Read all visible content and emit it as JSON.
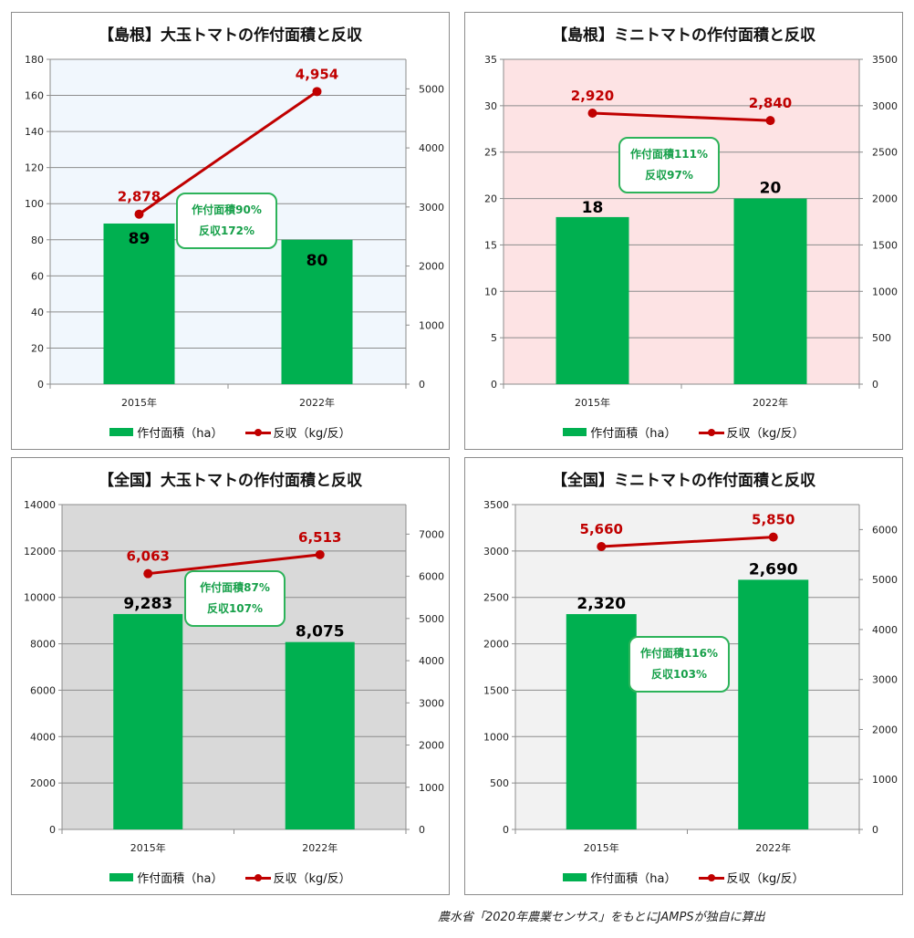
{
  "colors": {
    "bar": "#00b050",
    "line": "#c00000",
    "callout_border": "#2db35a",
    "callout_text": "#17a04a"
  },
  "legend": {
    "bar_label": "作付面積（ha）",
    "line_label": "反収（kg/反）"
  },
  "source_note": "農水省「2020年農業センサス」をもとにJAMPSが独自に算出",
  "charts": [
    {
      "id": "shimane-large",
      "title": "【島根】大玉トマトの作付面積と反収",
      "plot_bg": "#f1f7fd",
      "categories": [
        "2015年",
        "2022年"
      ],
      "bar_values": [
        89,
        80
      ],
      "bar_labels": [
        "89",
        "80"
      ],
      "line_values": [
        2878,
        4954
      ],
      "line_labels": [
        "2,878",
        "4,954"
      ],
      "left_axis": {
        "min": 0,
        "max": 180,
        "step": 20,
        "tick_labels": [
          "0",
          "20",
          "40",
          "60",
          "80",
          "100",
          "120",
          "140",
          "160",
          "180"
        ]
      },
      "right_axis": {
        "min": 0,
        "max": 5500,
        "ticks": [
          0,
          1000,
          2000,
          3000,
          4000,
          5000
        ],
        "tick_labels": [
          "0",
          "1000",
          "2000",
          "3000",
          "4000",
          "5000"
        ]
      },
      "callout": {
        "line1": "作付面積90%",
        "line2": "反収172%"
      }
    },
    {
      "id": "shimane-mini",
      "title": "【島根】ミニトマトの作付面積と反収",
      "plot_bg": "#fde3e4",
      "categories": [
        "2015年",
        "2022年"
      ],
      "bar_values": [
        18,
        20
      ],
      "bar_labels": [
        "18",
        "20"
      ],
      "line_values": [
        2920,
        2840
      ],
      "line_labels": [
        "2,920",
        "2,840"
      ],
      "left_axis": {
        "min": 0,
        "max": 35,
        "step": 5,
        "tick_labels": [
          "0",
          "5",
          "10",
          "15",
          "20",
          "25",
          "30",
          "35"
        ]
      },
      "right_axis": {
        "min": 0,
        "max": 3500,
        "ticks": [
          0,
          500,
          1000,
          1500,
          2000,
          2500,
          3000,
          3500
        ],
        "tick_labels": [
          "0",
          "500",
          "1000",
          "1500",
          "2000",
          "2500",
          "3000",
          "3500"
        ]
      },
      "callout": {
        "line1": "作付面積111%",
        "line2": "反収97%"
      }
    },
    {
      "id": "national-large",
      "title": "【全国】大玉トマトの作付面積と反収",
      "plot_bg": "#d9d9d9",
      "categories": [
        "2015年",
        "2022年"
      ],
      "bar_values": [
        9283,
        8075
      ],
      "bar_labels": [
        "9,283",
        "8,075"
      ],
      "line_values": [
        6063,
        6513
      ],
      "line_labels": [
        "6,063",
        "6,513"
      ],
      "left_axis": {
        "min": 0,
        "max": 14000,
        "step": 2000,
        "tick_labels": [
          "0",
          "2000",
          "4000",
          "6000",
          "8000",
          "10000",
          "12000",
          "14000"
        ]
      },
      "right_axis": {
        "min": 0,
        "max": 7700,
        "ticks": [
          0,
          1000,
          2000,
          3000,
          4000,
          5000,
          6000,
          7000
        ],
        "tick_labels": [
          "0",
          "1000",
          "2000",
          "3000",
          "4000",
          "5000",
          "6000",
          "7000"
        ]
      },
      "callout": {
        "line1": "作付面積87%",
        "line2": "反収107%"
      }
    },
    {
      "id": "national-mini",
      "title": "【全国】ミニトマトの作付面積と反収",
      "plot_bg": "#f2f2f2",
      "categories": [
        "2015年",
        "2022年"
      ],
      "bar_values": [
        2320,
        2690
      ],
      "bar_labels": [
        "2,320",
        "2,690"
      ],
      "line_values": [
        5660,
        5850
      ],
      "line_labels": [
        "5,660",
        "5,850"
      ],
      "left_axis": {
        "min": 0,
        "max": 3500,
        "step": 500,
        "tick_labels": [
          "0",
          "500",
          "1000",
          "1500",
          "2000",
          "2500",
          "3000",
          "3500"
        ]
      },
      "right_axis": {
        "min": 0,
        "max": 6500,
        "ticks": [
          0,
          1000,
          2000,
          3000,
          4000,
          5000,
          6000
        ],
        "tick_labels": [
          "0",
          "1000",
          "2000",
          "3000",
          "4000",
          "5000",
          "6000"
        ]
      },
      "callout": {
        "line1": "作付面積116%",
        "line2": "反収103%"
      }
    }
  ],
  "chart_data": [
    {
      "type": "bar",
      "title": "【島根】大玉トマトの作付面積と反収",
      "categories": [
        "2015年",
        "2022年"
      ],
      "series": [
        {
          "name": "作付面積（ha）",
          "type": "bar",
          "axis": "left",
          "values": [
            89,
            80
          ]
        },
        {
          "name": "反収（kg/反）",
          "type": "line",
          "axis": "right",
          "values": [
            2878,
            4954
          ]
        }
      ],
      "ylim": [
        0,
        180
      ],
      "y2lim": [
        0,
        5500
      ],
      "grid": true,
      "legend": "bottom"
    },
    {
      "type": "bar",
      "title": "【島根】ミニトマトの作付面積と反収",
      "categories": [
        "2015年",
        "2022年"
      ],
      "series": [
        {
          "name": "作付面積（ha）",
          "type": "bar",
          "axis": "left",
          "values": [
            18,
            20
          ]
        },
        {
          "name": "反収（kg/反）",
          "type": "line",
          "axis": "right",
          "values": [
            2920,
            2840
          ]
        }
      ],
      "ylim": [
        0,
        35
      ],
      "y2lim": [
        0,
        3500
      ],
      "grid": true,
      "legend": "bottom"
    },
    {
      "type": "bar",
      "title": "【全国】大玉トマトの作付面積と反収",
      "categories": [
        "2015年",
        "2022年"
      ],
      "series": [
        {
          "name": "作付面積（ha）",
          "type": "bar",
          "axis": "left",
          "values": [
            9283,
            8075
          ]
        },
        {
          "name": "反収（kg/反）",
          "type": "line",
          "axis": "right",
          "values": [
            6063,
            6513
          ]
        }
      ],
      "ylim": [
        0,
        14000
      ],
      "y2lim": [
        0,
        7700
      ],
      "grid": true,
      "legend": "bottom"
    },
    {
      "type": "bar",
      "title": "【全国】ミニトマトの作付面積と反収",
      "categories": [
        "2015年",
        "2022年"
      ],
      "series": [
        {
          "name": "作付面積（ha）",
          "type": "bar",
          "axis": "left",
          "values": [
            2320,
            2690
          ]
        },
        {
          "name": "反収（kg/反）",
          "type": "line",
          "axis": "right",
          "values": [
            5660,
            5850
          ]
        }
      ],
      "ylim": [
        0,
        3500
      ],
      "y2lim": [
        0,
        6500
      ],
      "grid": true,
      "legend": "bottom"
    }
  ]
}
